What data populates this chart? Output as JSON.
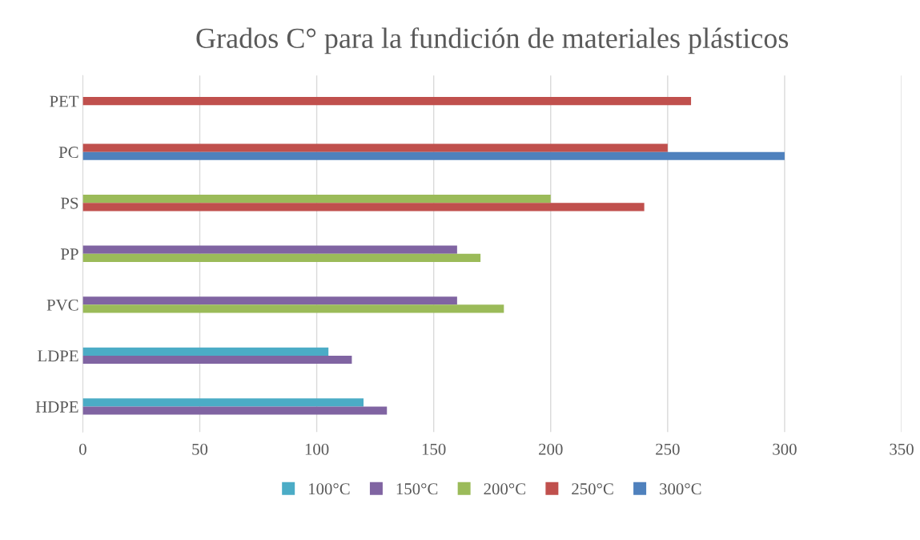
{
  "chart_data": {
    "type": "bar",
    "orientation": "horizontal",
    "title": "Grados C° para la fundición de materiales plásticos",
    "categories": [
      "PET",
      "PC",
      "PS",
      "PP",
      "PVC",
      "LDPE",
      "HDPE"
    ],
    "series": [
      {
        "name": "100°C",
        "color": "#4bacc6",
        "values": [
          null,
          null,
          null,
          null,
          null,
          105,
          120
        ]
      },
      {
        "name": "150°C",
        "color": "#8064a2",
        "values": [
          null,
          null,
          null,
          160,
          160,
          115,
          130
        ]
      },
      {
        "name": "200°C",
        "color": "#9bbb59",
        "values": [
          null,
          null,
          200,
          170,
          180,
          null,
          null
        ]
      },
      {
        "name": "250°C",
        "color": "#c0504d",
        "values": [
          260,
          250,
          240,
          null,
          null,
          null,
          null
        ]
      },
      {
        "name": "300°C",
        "color": "#4f81bd",
        "values": [
          null,
          300,
          null,
          null,
          null,
          null,
          null
        ]
      }
    ],
    "xlim": [
      0,
      350
    ],
    "xticks": [
      0,
      50,
      100,
      150,
      200,
      250,
      300,
      350
    ],
    "grid": "x",
    "legend": "bottom"
  }
}
